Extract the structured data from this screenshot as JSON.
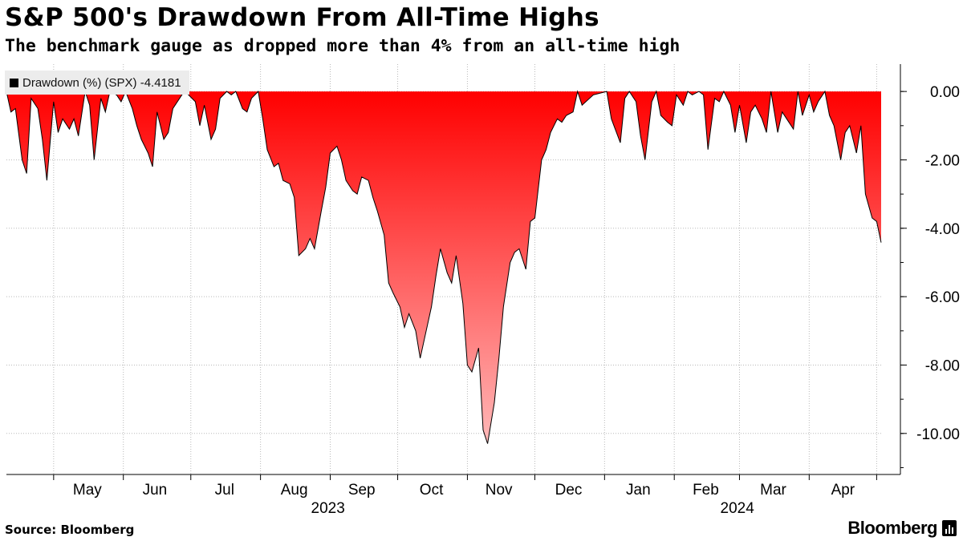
{
  "header": {
    "title": "S&P 500's Drawdown From All-Time Highs",
    "subtitle": "The benchmark gauge as dropped more than 4% from an all-time high"
  },
  "legend": {
    "label": "Drawdown (%) (SPX) -4.4181"
  },
  "footer": {
    "source": "Source: Bloomberg",
    "brand": "Bloomberg"
  },
  "icons": {
    "brand_icon": "bloomberg-terminal-icon",
    "legend_swatch": "square-swatch-icon"
  },
  "colors": {
    "fill_top": "#ff0000",
    "fill_bottom": "#ffb8b8",
    "line": "#000000",
    "grid": "#b9b9b9"
  },
  "chart_data": {
    "type": "area",
    "series": [
      {
        "name": "Drawdown (%) (SPX)",
        "last_value": -4.4181,
        "points": [
          [
            "2023-04-10",
            0.0
          ],
          [
            "2023-04-12",
            -0.6
          ],
          [
            "2023-04-14",
            -0.5
          ],
          [
            "2023-04-17",
            -2.0
          ],
          [
            "2023-04-19",
            -2.4
          ],
          [
            "2023-04-21",
            -0.2
          ],
          [
            "2023-04-24",
            -0.5
          ],
          [
            "2023-04-26",
            -1.4
          ],
          [
            "2023-04-28",
            -2.6
          ],
          [
            "2023-05-01",
            -0.3
          ],
          [
            "2023-05-03",
            -1.2
          ],
          [
            "2023-05-05",
            -0.8
          ],
          [
            "2023-05-08",
            -1.1
          ],
          [
            "2023-05-10",
            -0.8
          ],
          [
            "2023-05-12",
            -1.3
          ],
          [
            "2023-05-15",
            0.0
          ],
          [
            "2023-05-17",
            -0.4
          ],
          [
            "2023-05-19",
            -2.0
          ],
          [
            "2023-05-22",
            -0.2
          ],
          [
            "2023-05-24",
            -0.6
          ],
          [
            "2023-05-26",
            0.0
          ],
          [
            "2023-05-29",
            -0.1
          ],
          [
            "2023-05-31",
            -0.3
          ],
          [
            "2023-06-02",
            0.0
          ],
          [
            "2023-06-05",
            -0.5
          ],
          [
            "2023-06-07",
            -1.0
          ],
          [
            "2023-06-09",
            -1.4
          ],
          [
            "2023-06-12",
            -1.8
          ],
          [
            "2023-06-14",
            -2.2
          ],
          [
            "2023-06-16",
            -0.6
          ],
          [
            "2023-06-19",
            -1.4
          ],
          [
            "2023-06-21",
            -1.2
          ],
          [
            "2023-06-23",
            -0.5
          ],
          [
            "2023-06-26",
            -0.2
          ],
          [
            "2023-06-28",
            0.0
          ],
          [
            "2023-06-30",
            -0.1
          ],
          [
            "2023-07-03",
            -0.3
          ],
          [
            "2023-07-05",
            -1.0
          ],
          [
            "2023-07-07",
            -0.4
          ],
          [
            "2023-07-10",
            -1.4
          ],
          [
            "2023-07-12",
            -1.1
          ],
          [
            "2023-07-14",
            -0.2
          ],
          [
            "2023-07-17",
            0.0
          ],
          [
            "2023-07-19",
            -0.1
          ],
          [
            "2023-07-21",
            0.0
          ],
          [
            "2023-07-24",
            -0.5
          ],
          [
            "2023-07-26",
            -0.6
          ],
          [
            "2023-07-28",
            -0.2
          ],
          [
            "2023-07-31",
            0.0
          ],
          [
            "2023-08-02",
            -0.8
          ],
          [
            "2023-08-04",
            -1.7
          ],
          [
            "2023-08-07",
            -2.2
          ],
          [
            "2023-08-09",
            -2.1
          ],
          [
            "2023-08-11",
            -2.6
          ],
          [
            "2023-08-14",
            -2.7
          ],
          [
            "2023-08-16",
            -3.1
          ],
          [
            "2023-08-18",
            -4.8
          ],
          [
            "2023-08-21",
            -4.6
          ],
          [
            "2023-08-23",
            -4.3
          ],
          [
            "2023-08-25",
            -4.6
          ],
          [
            "2023-08-28",
            -3.5
          ],
          [
            "2023-08-30",
            -2.8
          ],
          [
            "2023-09-01",
            -1.8
          ],
          [
            "2023-09-04",
            -1.6
          ],
          [
            "2023-09-06",
            -2.0
          ],
          [
            "2023-09-08",
            -2.6
          ],
          [
            "2023-09-11",
            -2.9
          ],
          [
            "2023-09-13",
            -3.0
          ],
          [
            "2023-09-15",
            -2.5
          ],
          [
            "2023-09-18",
            -2.6
          ],
          [
            "2023-09-20",
            -3.1
          ],
          [
            "2023-09-22",
            -3.5
          ],
          [
            "2023-09-25",
            -4.2
          ],
          [
            "2023-09-27",
            -5.6
          ],
          [
            "2023-09-29",
            -5.9
          ],
          [
            "2023-10-02",
            -6.3
          ],
          [
            "2023-10-04",
            -6.9
          ],
          [
            "2023-10-06",
            -6.5
          ],
          [
            "2023-10-09",
            -7.0
          ],
          [
            "2023-10-11",
            -7.8
          ],
          [
            "2023-10-13",
            -7.2
          ],
          [
            "2023-10-16",
            -6.3
          ],
          [
            "2023-10-18",
            -5.4
          ],
          [
            "2023-10-20",
            -4.6
          ],
          [
            "2023-10-23",
            -5.3
          ],
          [
            "2023-10-25",
            -5.6
          ],
          [
            "2023-10-27",
            -4.8
          ],
          [
            "2023-10-30",
            -6.2
          ],
          [
            "2023-11-01",
            -8.0
          ],
          [
            "2023-11-03",
            -8.2
          ],
          [
            "2023-11-06",
            -7.5
          ],
          [
            "2023-11-08",
            -9.9
          ],
          [
            "2023-11-10",
            -10.3
          ],
          [
            "2023-11-13",
            -9.1
          ],
          [
            "2023-11-15",
            -7.8
          ],
          [
            "2023-11-17",
            -6.3
          ],
          [
            "2023-11-20",
            -5.0
          ],
          [
            "2023-11-22",
            -4.7
          ],
          [
            "2023-11-24",
            -4.6
          ],
          [
            "2023-11-27",
            -5.2
          ],
          [
            "2023-11-29",
            -3.8
          ],
          [
            "2023-12-01",
            -3.7
          ],
          [
            "2023-12-04",
            -2.0
          ],
          [
            "2023-12-06",
            -1.7
          ],
          [
            "2023-12-08",
            -1.2
          ],
          [
            "2023-12-11",
            -0.8
          ],
          [
            "2023-12-13",
            -0.9
          ],
          [
            "2023-12-15",
            -0.7
          ],
          [
            "2023-12-18",
            -0.6
          ],
          [
            "2023-12-20",
            0.0
          ],
          [
            "2023-12-22",
            -0.4
          ],
          [
            "2023-12-27",
            -0.1
          ],
          [
            "2024-01-02",
            0.0
          ],
          [
            "2024-01-04",
            -0.8
          ],
          [
            "2024-01-08",
            -1.5
          ],
          [
            "2024-01-10",
            -0.2
          ],
          [
            "2024-01-12",
            0.0
          ],
          [
            "2024-01-15",
            -0.3
          ],
          [
            "2024-01-17",
            -1.3
          ],
          [
            "2024-01-19",
            -2.0
          ],
          [
            "2024-01-22",
            -0.3
          ],
          [
            "2024-01-24",
            0.0
          ],
          [
            "2024-01-26",
            -0.7
          ],
          [
            "2024-01-29",
            -0.9
          ],
          [
            "2024-01-31",
            -1.0
          ],
          [
            "2024-02-02",
            -0.1
          ],
          [
            "2024-02-05",
            -0.4
          ],
          [
            "2024-02-07",
            0.0
          ],
          [
            "2024-02-09",
            -0.1
          ],
          [
            "2024-02-12",
            0.0
          ],
          [
            "2024-02-14",
            -0.1
          ],
          [
            "2024-02-16",
            -1.7
          ],
          [
            "2024-02-19",
            -0.2
          ],
          [
            "2024-02-21",
            -0.3
          ],
          [
            "2024-02-23",
            0.0
          ],
          [
            "2024-02-26",
            -0.4
          ],
          [
            "2024-02-28",
            -1.2
          ],
          [
            "2024-03-01",
            -0.4
          ],
          [
            "2024-03-04",
            -1.5
          ],
          [
            "2024-03-06",
            -0.6
          ],
          [
            "2024-03-08",
            -0.4
          ],
          [
            "2024-03-11",
            -0.8
          ],
          [
            "2024-03-13",
            -1.2
          ],
          [
            "2024-03-15",
            0.0
          ],
          [
            "2024-03-18",
            -1.2
          ],
          [
            "2024-03-20",
            -0.6
          ],
          [
            "2024-03-22",
            -0.8
          ],
          [
            "2024-03-25",
            -1.1
          ],
          [
            "2024-03-27",
            0.0
          ],
          [
            "2024-03-29",
            -0.7
          ],
          [
            "2024-04-01",
            -0.1
          ],
          [
            "2024-04-03",
            -0.6
          ],
          [
            "2024-04-05",
            -0.3
          ],
          [
            "2024-04-08",
            0.0
          ],
          [
            "2024-04-10",
            -0.7
          ],
          [
            "2024-04-12",
            -1.0
          ],
          [
            "2024-04-15",
            -2.0
          ],
          [
            "2024-04-17",
            -1.2
          ],
          [
            "2024-04-19",
            -1.0
          ],
          [
            "2024-04-22",
            -1.8
          ],
          [
            "2024-04-24",
            -1.0
          ],
          [
            "2024-04-26",
            -3.0
          ],
          [
            "2024-04-29",
            -3.7
          ],
          [
            "2024-05-01",
            -3.8
          ],
          [
            "2024-05-03",
            -4.4181
          ]
        ]
      }
    ],
    "title": "S&P 500's Drawdown From All-Time Highs",
    "ylabel": "",
    "ylim": [
      -11.2,
      0.8
    ],
    "xlim": [
      "2023-04-10",
      "2024-05-03"
    ],
    "y_ticks": [
      0,
      -2,
      -4,
      -6,
      -8,
      -10
    ],
    "y_tick_labels": [
      "0.00",
      "-2.00",
      "-4.00",
      "-6.00",
      "-8.00",
      "-10.00"
    ],
    "x_month_labels": [
      {
        "label": "May",
        "date": "2023-05-16"
      },
      {
        "label": "Jun",
        "date": "2023-06-15"
      },
      {
        "label": "Jul",
        "date": "2023-07-16"
      },
      {
        "label": "Aug",
        "date": "2023-08-16"
      },
      {
        "label": "Sep",
        "date": "2023-09-15"
      },
      {
        "label": "Oct",
        "date": "2023-10-16"
      },
      {
        "label": "Nov",
        "date": "2023-11-15"
      },
      {
        "label": "Dec",
        "date": "2023-12-16"
      },
      {
        "label": "Jan",
        "date": "2024-01-16"
      },
      {
        "label": "Feb",
        "date": "2024-02-15"
      },
      {
        "label": "Mar",
        "date": "2024-03-16"
      },
      {
        "label": "Apr",
        "date": "2024-04-16"
      }
    ],
    "x_year_labels": [
      {
        "label": "2023",
        "date": "2023-08-31"
      },
      {
        "label": "2024",
        "date": "2024-02-29"
      }
    ],
    "x_boundaries": [
      "2023-05-01",
      "2023-06-01",
      "2023-07-01",
      "2023-08-01",
      "2023-09-01",
      "2023-10-01",
      "2023-11-01",
      "2023-12-01",
      "2024-01-01",
      "2024-02-01",
      "2024-03-01",
      "2024-04-01",
      "2024-05-01"
    ],
    "grid": true,
    "legend_position": "top-left"
  }
}
